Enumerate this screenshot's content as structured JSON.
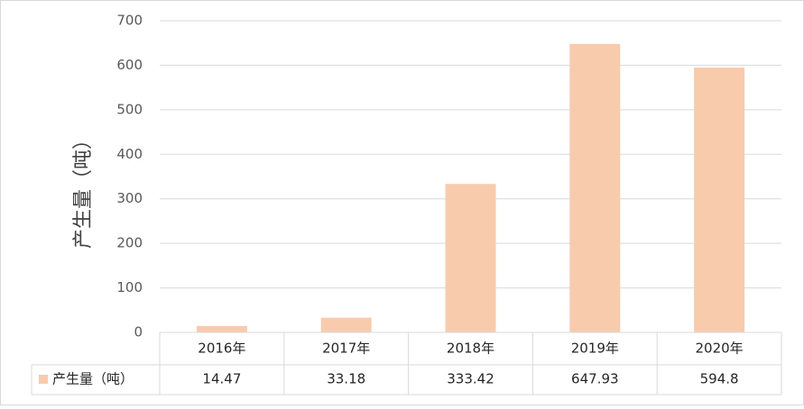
{
  "chart_data": {
    "type": "bar",
    "y_label": "产生量（吨）",
    "categories": [
      "2016年",
      "2017年",
      "2018年",
      "2019年",
      "2020年"
    ],
    "series": [
      {
        "name": "产生量（吨）",
        "color": "#f8cbad",
        "values": [
          14.47,
          33.18,
          333.42,
          647.93,
          594.8
        ]
      }
    ],
    "ylim": [
      0,
      700
    ],
    "yticks": [
      0,
      100,
      200,
      300,
      400,
      500,
      600,
      700
    ],
    "grid": true,
    "data_table": true
  }
}
